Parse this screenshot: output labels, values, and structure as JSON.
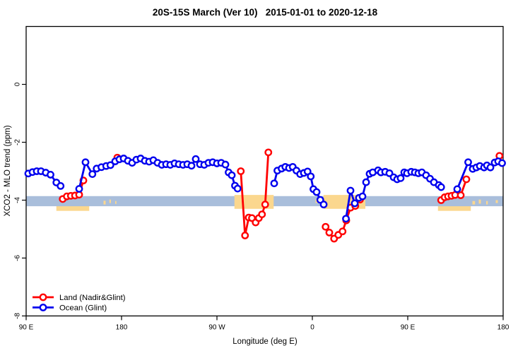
{
  "title": "20S-15S March (Ver 10)   2015-01-01 to 2020-12-18",
  "chart_data": {
    "type": "line",
    "title": "20S-15S March (Ver 10)   2015-01-01 to 2020-12-18",
    "xlabel": "Longitude (deg E)",
    "ylabel": "XCO2 - MLO trend (ppm)",
    "xlim": [
      90,
      540
    ],
    "ylim": [
      -8,
      2
    ],
    "grid": false,
    "x_ticks": [
      {
        "value": 90,
        "label": "90 E"
      },
      {
        "value": 180,
        "label": "180"
      },
      {
        "value": 270,
        "label": "90 W"
      },
      {
        "value": 360,
        "label": "0"
      },
      {
        "value": 450,
        "label": "90 E"
      },
      {
        "value": 540,
        "label": "180"
      }
    ],
    "y_ticks": [
      {
        "value": 0,
        "label": "0"
      },
      {
        "value": -2,
        "label": "-2"
      },
      {
        "value": -4,
        "label": "-4"
      },
      {
        "value": -6,
        "label": "-6"
      },
      {
        "value": -8,
        "label": "-8"
      }
    ],
    "legend_position": "bottom-left",
    "legend": [
      {
        "name": "Land (Nadir&Glint)",
        "color": "#ff0000"
      },
      {
        "name": "Ocean (Glint)",
        "color": "#0000ee"
      }
    ],
    "bands": {
      "ocean_band": {
        "color": "#a9bedb",
        "x": [
          90,
          540
        ],
        "y": [
          -3.86,
          -4.21
        ]
      },
      "land_color": "#fbd78e",
      "land_bands_under": [
        {
          "x": [
            118.5,
            149.5
          ],
          "y": [
            -3.92,
            -4.37
          ]
        },
        {
          "x": [
            478.5,
            509.5
          ],
          "y": [
            -3.92,
            -4.37
          ]
        }
      ],
      "land_bands_over": [
        {
          "x": [
            286.5,
            323.5
          ],
          "y": [
            -3.82,
            -4.3
          ]
        },
        {
          "x": [
            370.5,
            410.0
          ],
          "y": [
            -3.82,
            -4.3
          ]
        }
      ],
      "land_specks": [
        {
          "x": [
            163,
            165
          ],
          "y": [
            -4.02,
            -4.15
          ]
        },
        {
          "x": [
            168.5,
            170
          ],
          "y": [
            -3.98,
            -4.1
          ]
        },
        {
          "x": [
            174,
            175.2
          ],
          "y": [
            -4.03,
            -4.13
          ]
        },
        {
          "x": [
            363,
            365
          ],
          "y": [
            -3.98,
            -4.1
          ]
        },
        {
          "x": [
            511,
            513.5
          ],
          "y": [
            -4.03,
            -4.15
          ]
        },
        {
          "x": [
            517,
            519
          ],
          "y": [
            -3.98,
            -4.12
          ]
        },
        {
          "x": [
            524,
            525.5
          ],
          "y": [
            -4.03,
            -4.15
          ]
        },
        {
          "x": [
            533,
            535
          ],
          "y": [
            -4.0,
            -4.1
          ]
        }
      ]
    },
    "series": [
      {
        "name": "Land (Nadir&Glint)",
        "color": "#ff0000",
        "marker": "open-circle",
        "segments": [
          {
            "x": [
              124.5,
              128.4,
              132.2,
              136.1,
              140,
              144
            ],
            "y": [
              -3.96,
              -3.87,
              -3.85,
              -3.84,
              -3.81,
              -3.32
            ]
          },
          {
            "x": [
              176
            ],
            "y": [
              -2.53
            ]
          },
          {
            "x": [
              292.5,
              296.5,
              300,
              303,
              306.5,
              309.5,
              312.5,
              315.5,
              318.5
            ],
            "y": [
              -3.0,
              -5.22,
              -4.6,
              -4.62,
              -4.77,
              -4.62,
              -4.49,
              -4.15,
              -2.35
            ]
          },
          {
            "x": [
              372.5,
              376,
              380.5,
              384.5,
              388.5,
              392,
              396,
              400.5,
              405
            ],
            "y": [
              -4.92,
              -5.12,
              -5.33,
              -5.2,
              -5.08,
              -4.7,
              -4.26,
              -4.2,
              -3.98
            ]
          },
          {
            "x": [
              481.5,
              484.8,
              488,
              491.3,
              494.7,
              500,
              505.3
            ],
            "y": [
              -4.0,
              -3.9,
              -3.87,
              -3.85,
              -3.82,
              -3.83,
              -3.28
            ]
          },
          {
            "x": [
              536.5
            ],
            "y": [
              -2.47
            ]
          }
        ]
      },
      {
        "name": "Ocean (Glint)",
        "color": "#0000ee",
        "marker": "open-circle",
        "segments": [
          {
            "x": [
              92,
              96,
              100,
              104,
              108.5,
              113,
              118.5,
              122.5
            ],
            "y": [
              -3.08,
              -3.03,
              -3.0,
              -3.0,
              -3.05,
              -3.12,
              -3.39,
              -3.51
            ]
          },
          {
            "x": [
              140,
              146,
              152.5,
              156.5,
              161,
              165.5,
              169.5,
              174,
              178,
              182,
              186,
              190,
              194,
              198,
              202,
              206,
              210,
              214,
              218,
              222,
              226,
              230,
              234,
              238,
              242,
              246,
              250,
              254,
              258,
              262,
              266,
              270,
              274,
              278,
              281,
              284,
              287,
              289.5
            ],
            "y": [
              -3.61,
              -2.69,
              -3.1,
              -2.91,
              -2.86,
              -2.82,
              -2.79,
              -2.66,
              -2.59,
              -2.56,
              -2.64,
              -2.71,
              -2.6,
              -2.56,
              -2.64,
              -2.67,
              -2.62,
              -2.71,
              -2.78,
              -2.76,
              -2.78,
              -2.73,
              -2.76,
              -2.78,
              -2.76,
              -2.81,
              -2.58,
              -2.76,
              -2.78,
              -2.71,
              -2.69,
              -2.73,
              -2.71,
              -2.77,
              -3.04,
              -3.14,
              -3.5,
              -3.6
            ]
          },
          {
            "x": [
              324,
              327,
              331,
              334.5,
              338,
              341.5,
              345,
              348.5,
              352,
              355.5,
              358.5,
              361,
              364,
              367.5,
              370.7
            ],
            "y": [
              -3.42,
              -2.98,
              -2.91,
              -2.85,
              -2.89,
              -2.85,
              -2.98,
              -3.1,
              -3.06,
              -3.01,
              -3.18,
              -3.62,
              -3.72,
              -3.99,
              -4.15
            ]
          },
          {
            "x": [
              391.7,
              396,
              400,
              404,
              407.3,
              410.7,
              414,
              417,
              422,
              424.7,
              428.7,
              432.7,
              436.7,
              440,
              443.3,
              446.7,
              449.3,
              453.3,
              456.7,
              460,
              463.3,
              467.3,
              471,
              474.7,
              479.3,
              481.5
            ],
            "y": [
              -4.64,
              -3.67,
              -4.11,
              -3.92,
              -3.87,
              -3.38,
              -3.09,
              -3.04,
              -2.97,
              -3.04,
              -3.02,
              -3.07,
              -3.21,
              -3.28,
              -3.24,
              -3.04,
              -3.07,
              -3.02,
              -3.04,
              -3.07,
              -3.04,
              -3.14,
              -3.26,
              -3.38,
              -3.48,
              -3.55
            ]
          },
          {
            "x": [
              496.7,
              507,
              511.3,
              514.7,
              518,
              522,
              524.7,
              528,
              532,
              535.3,
              539
            ],
            "y": [
              -3.62,
              -2.69,
              -2.92,
              -2.87,
              -2.82,
              -2.87,
              -2.8,
              -2.87,
              -2.7,
              -2.66,
              -2.72
            ]
          }
        ]
      }
    ]
  }
}
